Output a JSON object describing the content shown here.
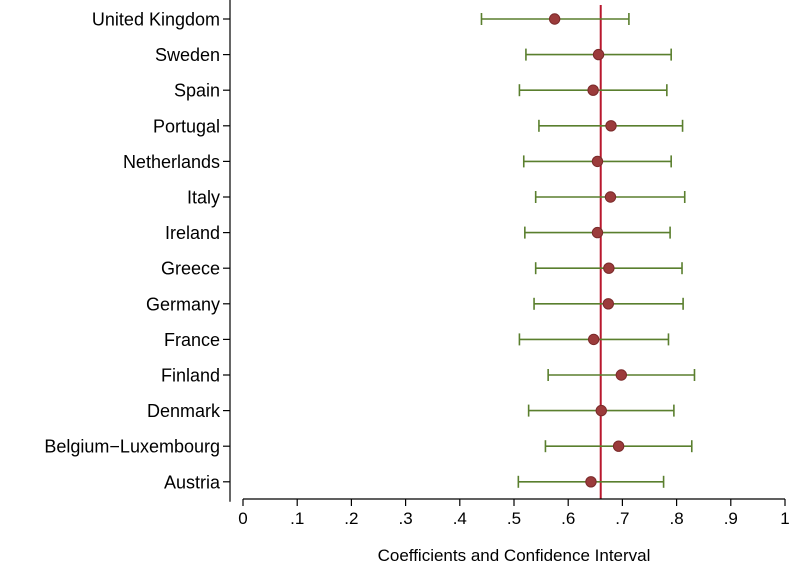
{
  "chart_data": {
    "type": "scatter",
    "subtype": "coefficient-plot-with-confidence-intervals",
    "title": "",
    "xlabel": "Coefficients and Confidence Interval",
    "ylabel": "",
    "xlim": [
      0,
      1
    ],
    "xticks": [
      0,
      0.1,
      0.2,
      0.3,
      0.4,
      0.5,
      0.6,
      0.7,
      0.8,
      0.9,
      1
    ],
    "xtick_labels": [
      "0",
      ".1",
      ".2",
      ".3",
      ".4",
      ".5",
      ".6",
      ".7",
      ".8",
      ".9",
      "1"
    ],
    "reference_line": {
      "x": 0.66,
      "color": "#b8172d"
    },
    "grid": false,
    "legend": "none",
    "colors": {
      "point": "#9b3b3b",
      "point_edge": "#7a2a2a",
      "interval": "#5a7f2e",
      "axis": "#000000"
    },
    "categories": [
      "United Kingdom",
      "Sweden",
      "Spain",
      "Portugal",
      "Netherlands",
      "Italy",
      "Ireland",
      "Greece",
      "Germany",
      "France",
      "Finland",
      "Denmark",
      "Belgium−Luxembourg",
      "Austria"
    ],
    "estimates": [
      0.575,
      0.656,
      0.646,
      0.679,
      0.654,
      0.678,
      0.654,
      0.675,
      0.674,
      0.647,
      0.698,
      0.661,
      0.693,
      0.642
    ],
    "ci_low": [
      0.44,
      0.522,
      0.51,
      0.546,
      0.518,
      0.54,
      0.52,
      0.54,
      0.537,
      0.51,
      0.563,
      0.527,
      0.558,
      0.508
    ],
    "ci_high": [
      0.712,
      0.79,
      0.782,
      0.811,
      0.79,
      0.815,
      0.788,
      0.81,
      0.812,
      0.785,
      0.833,
      0.795,
      0.828,
      0.776
    ]
  }
}
